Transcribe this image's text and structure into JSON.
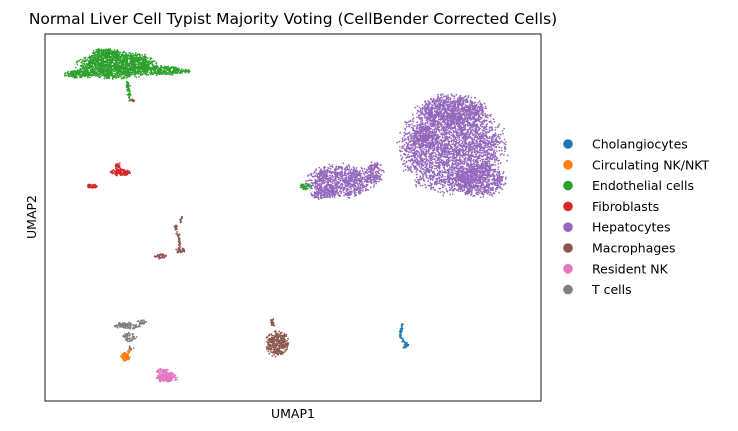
{
  "chart_data": {
    "type": "scatter",
    "title": "Normal Liver Cell Typist Majority Voting (CellBender Corrected Cells)",
    "xlabel": "UMAP1",
    "ylabel": "UMAP2",
    "xlim": [
      0,
      100
    ],
    "ylim": [
      0,
      100
    ],
    "ticks_shown": false,
    "grid": false,
    "legend_placement": "right-outside",
    "series": [
      {
        "name": "Cholangiocytes",
        "color": "#1f77b4",
        "clusters": [
          {
            "shape": "line",
            "points": [
              [
                72.0,
                21.0
              ],
              [
                71.8,
                19.5
              ],
              [
                71.6,
                17.6
              ],
              [
                72.3,
                16.3
              ],
              [
                73.1,
                15.2
              ],
              [
                72.4,
                14.5
              ]
            ],
            "n": 90,
            "spread": 0.35
          }
        ]
      },
      {
        "name": "Circulating NK/NKT",
        "color": "#ff7f0e",
        "clusters": [
          {
            "shape": "blob",
            "cx": 16.2,
            "cy": 12.0,
            "rx": 0.9,
            "ry": 1.2,
            "n": 70
          },
          {
            "shape": "blob",
            "cx": 17.0,
            "cy": 13.6,
            "rx": 0.4,
            "ry": 0.5,
            "n": 15
          }
        ]
      },
      {
        "name": "Endothelial cells",
        "color": "#2ca02c",
        "clusters": [
          {
            "shape": "blob",
            "cx": 14.5,
            "cy": 91.5,
            "rx": 8.0,
            "ry": 3.6,
            "n": 1500
          },
          {
            "shape": "blob",
            "cx": 7.0,
            "cy": 89.0,
            "rx": 3.0,
            "ry": 1.1,
            "n": 170
          },
          {
            "shape": "blob",
            "cx": 23.5,
            "cy": 90.0,
            "rx": 4.2,
            "ry": 1.3,
            "n": 230
          },
          {
            "shape": "blob",
            "cx": 12.5,
            "cy": 94.8,
            "rx": 3.2,
            "ry": 1.3,
            "n": 160
          },
          {
            "shape": "blob",
            "cx": 28.0,
            "cy": 89.8,
            "rx": 1.5,
            "ry": 0.6,
            "n": 35
          },
          {
            "shape": "line",
            "points": [
              [
                16.6,
                87.0
              ],
              [
                16.9,
                84.5
              ],
              [
                17.0,
                82.2
              ]
            ],
            "n": 45,
            "spread": 0.5
          },
          {
            "shape": "blob",
            "cx": 52.6,
            "cy": 58.5,
            "rx": 1.2,
            "ry": 0.9,
            "n": 55
          }
        ]
      },
      {
        "name": "Fibroblasts",
        "color": "#d62728",
        "clusters": [
          {
            "shape": "blob",
            "cx": 15.2,
            "cy": 62.3,
            "rx": 2.0,
            "ry": 0.9,
            "n": 120
          },
          {
            "shape": "blob",
            "cx": 14.7,
            "cy": 64.0,
            "rx": 0.6,
            "ry": 1.0,
            "n": 35
          },
          {
            "shape": "blob",
            "cx": 9.5,
            "cy": 58.5,
            "rx": 1.1,
            "ry": 0.6,
            "n": 45
          }
        ]
      },
      {
        "name": "Hepatocytes",
        "color": "#9467bd",
        "clusters": [
          {
            "shape": "blob",
            "cx": 82.0,
            "cy": 69.0,
            "rx": 10.5,
            "ry": 12.5,
            "n": 3200
          },
          {
            "shape": "blob",
            "cx": 82.0,
            "cy": 79.5,
            "rx": 7.0,
            "ry": 4.0,
            "n": 700
          },
          {
            "shape": "blob",
            "cx": 87.5,
            "cy": 60.0,
            "rx": 5.5,
            "ry": 4.5,
            "n": 600
          },
          {
            "shape": "blob",
            "cx": 76.5,
            "cy": 72.0,
            "rx": 2.5,
            "ry": 3.0,
            "n": 140
          },
          {
            "shape": "blob",
            "cx": 59.5,
            "cy": 60.0,
            "rx": 6.5,
            "ry": 4.5,
            "n": 850
          },
          {
            "shape": "blob",
            "cx": 56.0,
            "cy": 56.5,
            "rx": 2.5,
            "ry": 1.6,
            "n": 130
          },
          {
            "shape": "blob",
            "cx": 66.5,
            "cy": 62.0,
            "rx": 1.8,
            "ry": 3.4,
            "n": 150
          }
        ]
      },
      {
        "name": "Macrophages",
        "color": "#8c564b",
        "clusters": [
          {
            "shape": "blob",
            "cx": 46.8,
            "cy": 15.5,
            "rx": 2.4,
            "ry": 3.4,
            "n": 330
          },
          {
            "shape": "line",
            "points": [
              [
                46.0,
                20.5
              ],
              [
                45.7,
                22.0
              ]
            ],
            "n": 25,
            "spread": 0.4
          },
          {
            "shape": "line",
            "points": [
              [
                27.0,
                41.0
              ],
              [
                27.2,
                44.0
              ],
              [
                26.4,
                46.5
              ],
              [
                26.2,
                48.0
              ]
            ],
            "n": 60,
            "spread": 0.35
          },
          {
            "shape": "blob",
            "cx": 23.2,
            "cy": 39.5,
            "rx": 1.4,
            "ry": 0.7,
            "n": 45
          },
          {
            "shape": "blob",
            "cx": 27.2,
            "cy": 41.0,
            "rx": 1.0,
            "ry": 0.7,
            "n": 25
          },
          {
            "shape": "line",
            "points": [
              [
                27.3,
                48.5
              ],
              [
                27.5,
                50.5
              ]
            ],
            "n": 12,
            "spread": 0.3
          },
          {
            "shape": "blob",
            "cx": 17.6,
            "cy": 81.8,
            "rx": 0.7,
            "ry": 0.5,
            "n": 12
          }
        ]
      },
      {
        "name": "Resident NK",
        "color": "#e377c2",
        "clusters": [
          {
            "shape": "blob",
            "cx": 24.5,
            "cy": 6.5,
            "rx": 2.2,
            "ry": 1.4,
            "n": 180
          },
          {
            "shape": "blob",
            "cx": 23.5,
            "cy": 8.2,
            "rx": 1.4,
            "ry": 0.6,
            "n": 40
          }
        ]
      },
      {
        "name": "T cells",
        "color": "#7f7f7f",
        "clusters": [
          {
            "shape": "blob",
            "cx": 16.5,
            "cy": 20.5,
            "rx": 2.8,
            "ry": 0.9,
            "n": 110
          },
          {
            "shape": "blob",
            "cx": 17.0,
            "cy": 17.5,
            "rx": 1.4,
            "ry": 1.4,
            "n": 60
          },
          {
            "shape": "blob",
            "cx": 19.5,
            "cy": 21.5,
            "rx": 0.9,
            "ry": 0.7,
            "n": 25
          },
          {
            "shape": "blob",
            "cx": 17.3,
            "cy": 14.5,
            "rx": 0.6,
            "ry": 0.6,
            "n": 12
          }
        ]
      }
    ]
  }
}
